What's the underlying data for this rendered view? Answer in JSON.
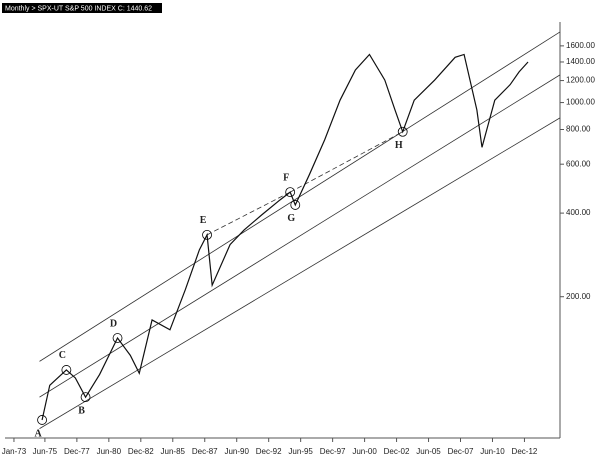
{
  "chart_data": {
    "type": "line",
    "title": "Monthly > SPX-UT S&P 500 INDEX C: 1440.62",
    "log_scale": true,
    "color": "#111111",
    "x": [
      1975.2,
      1975.8,
      1977.1,
      1977.8,
      1978.6,
      1979.7,
      1981.1,
      1982.1,
      1982.8,
      1983.8,
      1985.2,
      1986.4,
      1987.5,
      1988.1,
      1988.5,
      1989.9,
      1991.0,
      1992.4,
      1993.8,
      1994.6,
      1995.0,
      1996.1,
      1997.3,
      1998.5,
      1999.7,
      2000.8,
      2002.0,
      2002.8,
      2003.4,
      2004.3,
      2005.9,
      2007.5,
      2008.2,
      2009.2,
      2009.6,
      2010.6,
      2011.8,
      2012.5,
      2013.2
    ],
    "values": [
      72,
      96,
      109,
      102,
      87,
      105,
      142,
      123,
      106,
      165,
      152,
      212,
      295,
      334,
      220,
      308,
      348,
      395,
      446,
      476,
      428,
      550,
      735,
      1020,
      1310,
      1490,
      1205,
      940,
      785,
      1020,
      1205,
      1455,
      1490,
      940,
      690,
      1020,
      1160,
      1290,
      1400
    ],
    "xlim": [
      1972.3,
      2015.7
    ],
    "ylim": [
      62,
      1825
    ],
    "xticks": [
      {
        "value": 1973.0,
        "label": "Jan-73"
      },
      {
        "value": 1975.42,
        "label": "Jun-75"
      },
      {
        "value": 1977.92,
        "label": "Dec-77"
      },
      {
        "value": 1980.42,
        "label": "Jun-80"
      },
      {
        "value": 1982.92,
        "label": "Dec-82"
      },
      {
        "value": 1985.42,
        "label": "Jun-85"
      },
      {
        "value": 1987.92,
        "label": "Dec-87"
      },
      {
        "value": 1990.42,
        "label": "Jun-90"
      },
      {
        "value": 1992.92,
        "label": "Dec-92"
      },
      {
        "value": 1995.42,
        "label": "Jun-95"
      },
      {
        "value": 1997.92,
        "label": "Dec-97"
      },
      {
        "value": 2000.42,
        "label": "Jun-00"
      },
      {
        "value": 2002.92,
        "label": "Dec-02"
      },
      {
        "value": 2005.42,
        "label": "Jun-05"
      },
      {
        "value": 2007.92,
        "label": "Dec-07"
      },
      {
        "value": 2010.42,
        "label": "Jun-10"
      },
      {
        "value": 2012.92,
        "label": "Dec-12"
      }
    ],
    "yticks": [
      {
        "value": 1600,
        "label": "1600.00"
      },
      {
        "value": 1400,
        "label": "1400.00"
      },
      {
        "value": 1200,
        "label": "1200.00"
      },
      {
        "value": 1000,
        "label": "1000.00"
      },
      {
        "value": 800,
        "label": "800.00"
      },
      {
        "value": 600,
        "label": "600.00"
      },
      {
        "value": 400,
        "label": "400.00"
      },
      {
        "value": 200,
        "label": "200.00"
      }
    ],
    "trendlines": [
      {
        "x": [
          1975.0,
          2015.7
        ],
        "y": [
          117,
          1796
        ],
        "style": "solid"
      },
      {
        "x": [
          1975.0,
          2015.7
        ],
        "y": [
          87,
          1258
        ],
        "style": "solid"
      },
      {
        "x": [
          1975.0,
          2015.7
        ],
        "y": [
          67,
          881
        ],
        "style": "solid"
      },
      {
        "x": [
          1988.1,
          1994.6
        ],
        "y": [
          334,
          476
        ],
        "style": "dashed"
      },
      {
        "x": [
          1994.6,
          2003.4
        ],
        "y": [
          476,
          785
        ],
        "style": "dashed"
      }
    ],
    "annotations": [
      {
        "text": "A",
        "x": 1975.2,
        "y": 72,
        "position": "below"
      },
      {
        "text": "B",
        "x": 1978.6,
        "y": 87,
        "position": "below"
      },
      {
        "text": "C",
        "x": 1977.1,
        "y": 109,
        "position": "above"
      },
      {
        "text": "D",
        "x": 1981.1,
        "y": 142,
        "position": "above"
      },
      {
        "text": "E",
        "x": 1988.1,
        "y": 334,
        "position": "above"
      },
      {
        "text": "F",
        "x": 1994.6,
        "y": 476,
        "position": "above"
      },
      {
        "text": "G",
        "x": 1995.0,
        "y": 428,
        "position": "below"
      },
      {
        "text": "H",
        "x": 2003.4,
        "y": 785,
        "position": "below"
      }
    ]
  }
}
